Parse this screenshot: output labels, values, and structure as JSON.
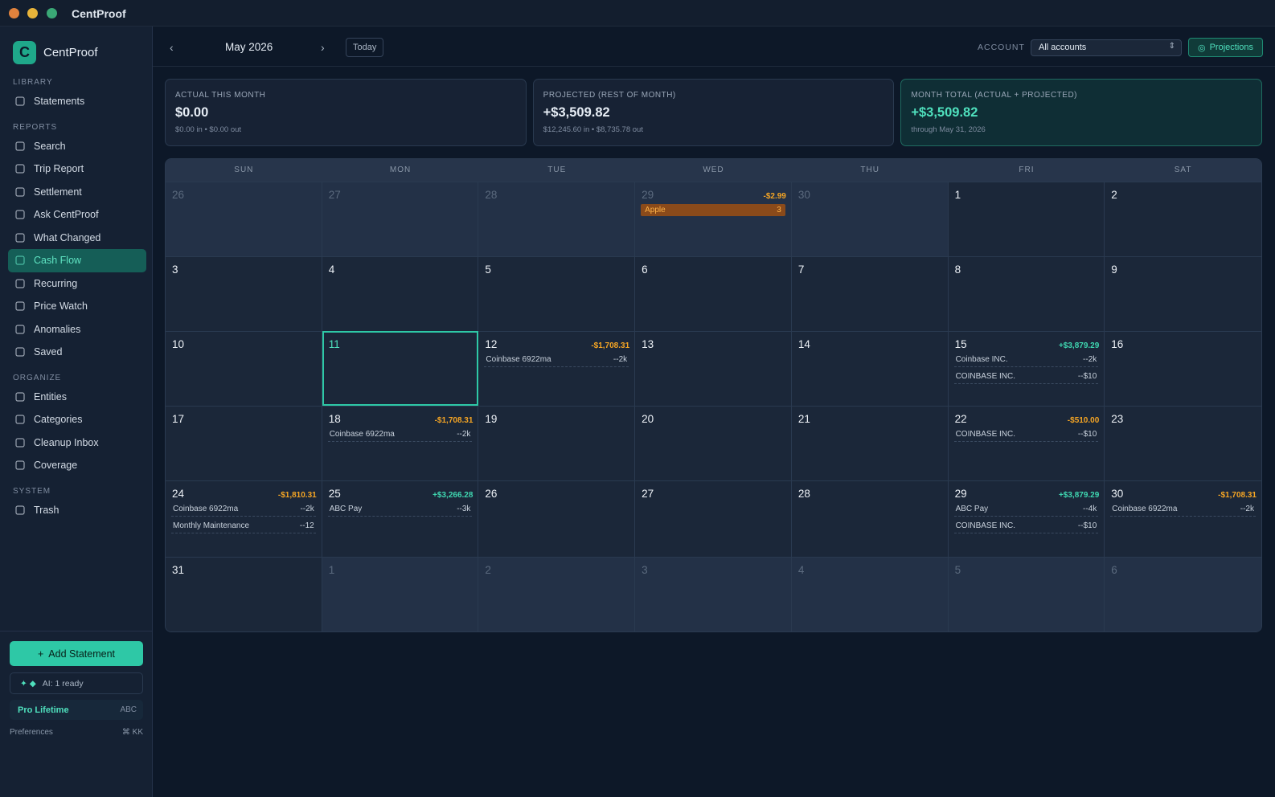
{
  "window": {
    "title": "CentProof"
  },
  "sidebar": {
    "brand": "CentProof",
    "sections": [
      {
        "heading": "LIBRARY",
        "items": [
          {
            "label": "Statements"
          }
        ]
      },
      {
        "heading": "REPORTS",
        "items": [
          {
            "label": "Search"
          },
          {
            "label": "Trip Report"
          },
          {
            "label": "Settlement"
          },
          {
            "label": "Ask CentProof"
          },
          {
            "label": "What Changed"
          },
          {
            "label": "Cash Flow",
            "active": true
          },
          {
            "label": "Recurring"
          },
          {
            "label": "Price Watch"
          },
          {
            "label": "Anomalies"
          },
          {
            "label": "Saved"
          }
        ]
      },
      {
        "heading": "ORGANIZE",
        "items": [
          {
            "label": "Entities"
          },
          {
            "label": "Categories"
          },
          {
            "label": "Cleanup Inbox"
          },
          {
            "label": "Coverage"
          }
        ]
      },
      {
        "heading": "SYSTEM",
        "items": [
          {
            "label": "Trash"
          }
        ]
      }
    ],
    "add_button": "Add Statement",
    "ai_status": "AI: 1 ready",
    "plan": "Pro Lifetime",
    "plan_code": "ABC",
    "preferences": "Preferences",
    "shortcut": "⌘ KK"
  },
  "toolbar": {
    "month": "May 2026",
    "today": "Today",
    "account_label": "ACCOUNT",
    "account": "All accounts",
    "projections": "Projections"
  },
  "summary": [
    {
      "label": "ACTUAL THIS MONTH",
      "value": "$0.00",
      "detail": "$0.00 in • $0.00 out"
    },
    {
      "label": "PROJECTED (REST OF MONTH)",
      "value": "+$3,509.82",
      "detail": "$12,245.60 in • $8,735.78 out"
    },
    {
      "label": "MONTH TOTAL (ACTUAL + PROJECTED)",
      "value": "+$3,509.82",
      "detail": "through May 31, 2026",
      "highlight": true
    }
  ],
  "calendar": {
    "weekdays": [
      "SUN",
      "MON",
      "TUE",
      "WED",
      "THU",
      "FRI",
      "SAT"
    ],
    "weeks": [
      [
        {
          "day": "26",
          "outside": true
        },
        {
          "day": "27",
          "outside": true
        },
        {
          "day": "28",
          "outside": true
        },
        {
          "day": "29",
          "outside": true,
          "total": "-$2.99",
          "events": [
            {
              "name": "Apple",
              "amount": "3",
              "highlight": true
            }
          ]
        },
        {
          "day": "30",
          "outside": true
        },
        {
          "day": "1"
        },
        {
          "day": "2"
        }
      ],
      [
        {
          "day": "3"
        },
        {
          "day": "4"
        },
        {
          "day": "5"
        },
        {
          "day": "6"
        },
        {
          "day": "7"
        },
        {
          "day": "8"
        },
        {
          "day": "9"
        }
      ],
      [
        {
          "day": "10"
        },
        {
          "day": "11",
          "today": true
        },
        {
          "day": "12",
          "total": "-$1,708.31",
          "events": [
            {
              "name": "Coinbase 6922ma",
              "amount": "--2k"
            }
          ]
        },
        {
          "day": "13"
        },
        {
          "day": "14"
        },
        {
          "day": "15",
          "total": "+$3,879.29",
          "events": [
            {
              "name": "Coinbase INC.",
              "amount": "--2k"
            },
            {
              "name": "COINBASE INC.",
              "amount": "--$10"
            }
          ]
        },
        {
          "day": "16"
        }
      ],
      [
        {
          "day": "17"
        },
        {
          "day": "18",
          "total": "-$1,708.31",
          "events": [
            {
              "name": "Coinbase 6922ma",
              "amount": "--2k"
            }
          ]
        },
        {
          "day": "19"
        },
        {
          "day": "20"
        },
        {
          "day": "21"
        },
        {
          "day": "22",
          "total": "-$510.00",
          "events": [
            {
              "name": "COINBASE INC.",
              "amount": "--$10"
            }
          ]
        },
        {
          "day": "23"
        }
      ],
      [
        {
          "day": "24",
          "total": "-$1,810.31",
          "events": [
            {
              "name": "Coinbase 6922ma",
              "amount": "--2k"
            },
            {
              "name": "Monthly Maintenance",
              "amount": "--12"
            }
          ]
        },
        {
          "day": "25",
          "total": "+$3,266.28",
          "events": [
            {
              "name": "ABC Pay",
              "amount": "--3k"
            }
          ]
        },
        {
          "day": "26"
        },
        {
          "day": "27"
        },
        {
          "day": "28"
        },
        {
          "day": "29",
          "total": "+$3,879.29",
          "events": [
            {
              "name": "ABC Pay",
              "amount": "--4k"
            },
            {
              "name": "COINBASE INC.",
              "amount": "--$10"
            }
          ]
        },
        {
          "day": "30",
          "total": "-$1,708.31",
          "events": [
            {
              "name": "Coinbase 6922ma",
              "amount": "--2k"
            }
          ]
        }
      ],
      [
        {
          "day": "31"
        },
        {
          "day": "1",
          "outside": true
        },
        {
          "day": "2",
          "outside": true
        },
        {
          "day": "3",
          "outside": true
        },
        {
          "day": "4",
          "outside": true
        },
        {
          "day": "5",
          "outside": true
        },
        {
          "day": "6",
          "outside": true
        }
      ]
    ]
  }
}
